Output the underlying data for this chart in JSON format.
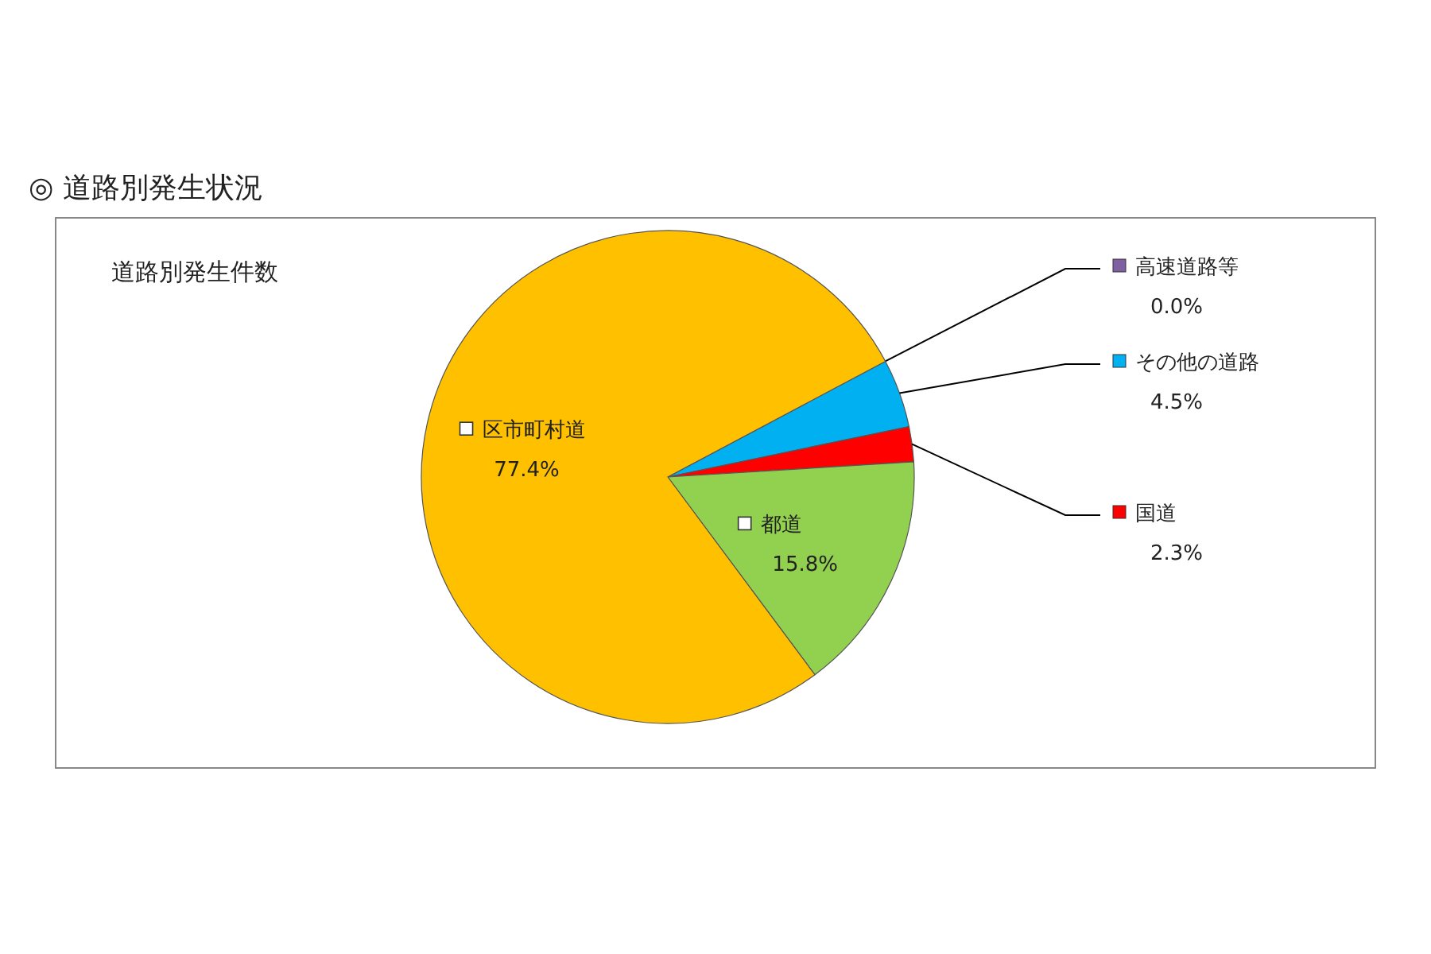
{
  "chart_data": {
    "type": "pie",
    "title": "◎ 道路別発生状況",
    "subtitle": "道路別発生件数",
    "categories": [
      "高速道路等",
      "その他の道路",
      "国道",
      "都道",
      "区市町村道"
    ],
    "values": [
      0.0,
      4.5,
      2.3,
      15.8,
      77.4
    ],
    "colors": [
      "#7f5fa0",
      "#00b0f0",
      "#ff0000",
      "#92d050",
      "#ffc000"
    ],
    "value_labels": [
      "0.0%",
      "4.5%",
      "2.3%",
      "15.8%",
      "77.4%"
    ],
    "legend": "right"
  }
}
